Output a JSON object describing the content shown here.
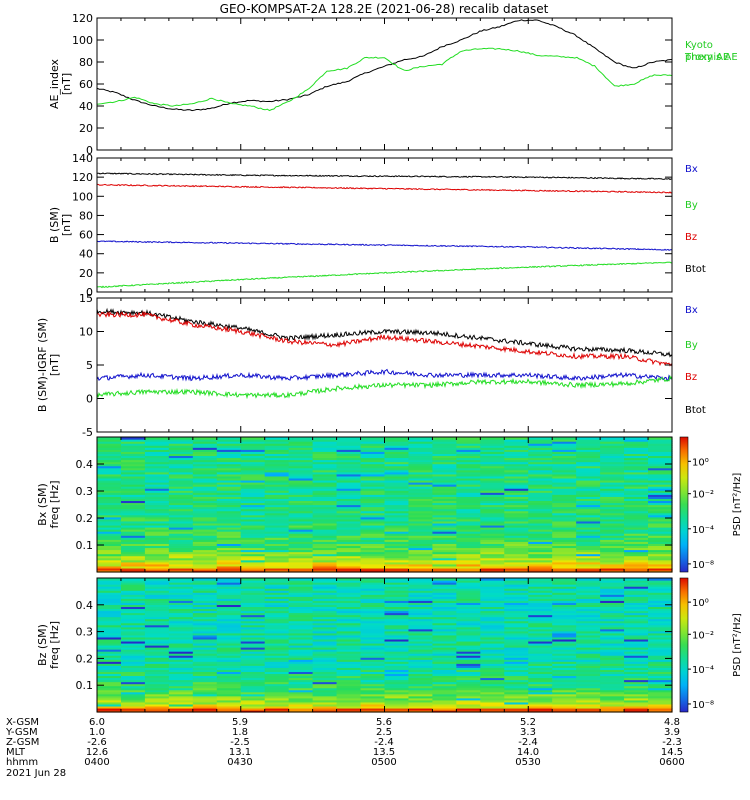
{
  "title": "GEO-KOMPSAT-2A 128.2E (2021-06-28) recalib dataset",
  "colors": {
    "black": "#000000",
    "red": "#dd0000",
    "green": "#22dd22",
    "blue": "#1010cc",
    "kyoto_label": "#22cc22",
    "by_label": "#22cc22"
  },
  "chart_data": [
    {
      "id": "ae",
      "type": "line",
      "ylabel": "AE_index\n[nT]",
      "ylim": [
        0,
        120
      ],
      "yticks": [
        0,
        20,
        40,
        60,
        80,
        100,
        120
      ],
      "xlim": [
        0,
        120
      ],
      "legend": [
        "Kyoto\nproxy AE",
        "Themis AE"
      ],
      "series": [
        {
          "name": "Themis AE",
          "color": "black",
          "x": [
            0,
            4,
            8,
            12,
            16,
            20,
            24,
            28,
            32,
            36,
            40,
            44,
            48,
            52,
            56,
            60,
            64,
            68,
            72,
            76,
            80,
            84,
            88,
            92,
            96,
            100,
            104,
            108,
            112,
            116,
            120
          ],
          "y": [
            56,
            52,
            45,
            40,
            37,
            36,
            38,
            43,
            45,
            44,
            46,
            50,
            58,
            62,
            70,
            76,
            82,
            85,
            94,
            100,
            108,
            112,
            118,
            118,
            112,
            104,
            92,
            80,
            74,
            80,
            82
          ]
        },
        {
          "name": "Kyoto proxy AE",
          "color": "green",
          "x": [
            0,
            4,
            8,
            12,
            16,
            20,
            24,
            28,
            32,
            36,
            40,
            44,
            48,
            52,
            56,
            60,
            64,
            68,
            72,
            76,
            80,
            84,
            88,
            92,
            96,
            100,
            104,
            108,
            112,
            116,
            120
          ],
          "y": [
            42,
            44,
            48,
            42,
            40,
            42,
            47,
            42,
            40,
            36,
            44,
            55,
            72,
            74,
            84,
            84,
            72,
            76,
            78,
            90,
            92,
            92,
            90,
            86,
            85,
            84,
            76,
            58,
            60,
            68,
            68
          ]
        }
      ]
    },
    {
      "id": "bsm",
      "type": "line",
      "ylabel": "B (SM)\n[nT]",
      "ylim": [
        0,
        140
      ],
      "yticks": [
        0,
        20,
        40,
        60,
        80,
        100,
        120,
        140
      ],
      "xlim": [
        0,
        120
      ],
      "legend": [
        "Bx",
        "By",
        "Bz",
        "Btot"
      ],
      "series": [
        {
          "name": "Btot",
          "color": "black",
          "x": [
            0,
            30,
            60,
            90,
            120
          ],
          "y": [
            124,
            122,
            121,
            120,
            118
          ]
        },
        {
          "name": "Bz",
          "color": "red",
          "x": [
            0,
            30,
            60,
            90,
            120
          ],
          "y": [
            112,
            110,
            108,
            106,
            104
          ]
        },
        {
          "name": "By",
          "color": "blue",
          "x": [
            0,
            30,
            60,
            90,
            120
          ],
          "y": [
            53,
            51,
            49,
            47,
            44
          ]
        },
        {
          "name": "Bx",
          "color": "green",
          "x": [
            0,
            30,
            60,
            90,
            120
          ],
          "y": [
            5,
            13,
            20,
            26,
            31
          ]
        }
      ]
    },
    {
      "id": "bsm_igrf",
      "type": "line",
      "ylabel": "B (SM)-IGRF (SM)\n[nT]",
      "ylim": [
        -5,
        15
      ],
      "yticks": [
        -5,
        0,
        5,
        10,
        15
      ],
      "xlim": [
        0,
        120
      ],
      "legend": [
        "Bx",
        "By",
        "Bz",
        "Btot"
      ],
      "series": [
        {
          "name": "Btot",
          "color": "black",
          "x": [
            0,
            10,
            20,
            30,
            40,
            50,
            60,
            70,
            80,
            90,
            100,
            110,
            120
          ],
          "y": [
            13,
            12.8,
            11.5,
            10.5,
            9,
            9.5,
            10,
            9.8,
            9,
            8.2,
            7.4,
            7.2,
            6.5
          ]
        },
        {
          "name": "Bz",
          "color": "red",
          "x": [
            0,
            10,
            20,
            30,
            40,
            50,
            60,
            70,
            80,
            90,
            100,
            110,
            120
          ],
          "y": [
            12.5,
            12.5,
            11,
            10,
            8.5,
            8,
            9.2,
            8.5,
            7.8,
            7,
            6.3,
            6.3,
            5
          ]
        },
        {
          "name": "By",
          "color": "blue",
          "x": [
            0,
            10,
            20,
            30,
            40,
            50,
            60,
            70,
            80,
            90,
            100,
            110,
            120
          ],
          "y": [
            3,
            3.5,
            3,
            3.5,
            3,
            3.5,
            4,
            3.5,
            3.5,
            3.5,
            3,
            3.5,
            3
          ]
        },
        {
          "name": "Bx",
          "color": "green",
          "x": [
            0,
            10,
            20,
            30,
            40,
            50,
            60,
            70,
            80,
            90,
            100,
            110,
            120
          ],
          "y": [
            0.5,
            1,
            1,
            0.5,
            0.5,
            1.5,
            2,
            2,
            2.5,
            2.5,
            2,
            2.2,
            3
          ]
        }
      ]
    },
    {
      "id": "spec_bx",
      "type": "heatmap",
      "ylabel": "Bx (SM)\nfreq [Hz]",
      "ylim": [
        0,
        0.5
      ],
      "yticks": [
        0.1,
        0.2,
        0.3,
        0.4
      ],
      "colorbar": {
        "label": "PSD [nT²/Hz]",
        "ticks": [
          "10⁰",
          "10⁻²",
          "10⁻⁴",
          "10⁻⁸"
        ]
      }
    },
    {
      "id": "spec_bz",
      "type": "heatmap",
      "ylabel": "Bz (SM)\nfreq [Hz]",
      "ylim": [
        0,
        0.5
      ],
      "yticks": [
        0.1,
        0.2,
        0.3,
        0.4
      ],
      "colorbar": {
        "label": "PSD [nT²/Hz]",
        "ticks": [
          "10⁰",
          "10⁻²",
          "10⁻⁴",
          "10⁻⁸"
        ]
      }
    }
  ],
  "ephemeris": {
    "labels": [
      "X-GSM",
      "Y-GSM",
      "Z-GSM",
      "MLT",
      "hhmm"
    ],
    "columns": [
      [
        "6.0",
        "1.0",
        "-2.6",
        "12.6",
        "0400"
      ],
      [
        "5.9",
        "1.8",
        "-2.5",
        "13.1",
        "0430"
      ],
      [
        "5.6",
        "2.5",
        "-2.4",
        "13.5",
        "0500"
      ],
      [
        "5.2",
        "3.3",
        "-2.4",
        "14.0",
        "0530"
      ],
      [
        "4.8",
        "3.9",
        "-2.3",
        "14.5",
        "0600"
      ]
    ],
    "date": "2021 Jun 28"
  }
}
